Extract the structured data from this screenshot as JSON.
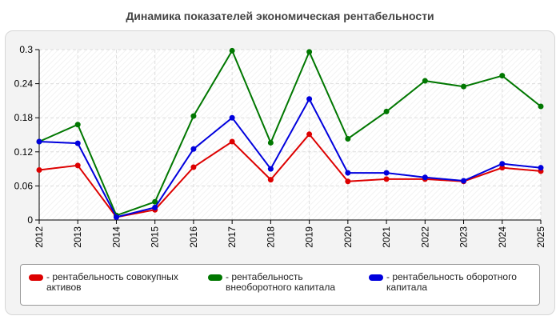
{
  "chart_data": {
    "type": "line",
    "title": "Динамика показателей экономическая рентабельности",
    "categories": [
      "2012",
      "2013",
      "2014",
      "2015",
      "2016",
      "2017",
      "2018",
      "2019",
      "2020",
      "2021",
      "2022",
      "2023",
      "2024",
      "2025"
    ],
    "ylim": [
      0,
      0.3
    ],
    "yticks": [
      "0",
      "0.06",
      "0.12",
      "0.18",
      "0.24",
      "0.3"
    ],
    "grid": true,
    "legend_position": "bottom",
    "series": [
      {
        "name": "- рентабельность совокупных активов",
        "color": "#dd0000",
        "values": [
          0.088,
          0.096,
          0.005,
          0.018,
          0.093,
          0.138,
          0.071,
          0.151,
          0.068,
          0.072,
          0.072,
          0.068,
          0.092,
          0.086
        ]
      },
      {
        "name": "- рентабельность внеоборотного капитала",
        "color": "#007700",
        "values": [
          0.138,
          0.168,
          0.008,
          0.032,
          0.183,
          0.298,
          0.136,
          0.296,
          0.143,
          0.191,
          0.245,
          0.235,
          0.254,
          0.2
        ]
      },
      {
        "name": "- рентабельность оборотного капитала",
        "color": "#0000dd",
        "values": [
          0.138,
          0.135,
          0.005,
          0.022,
          0.125,
          0.18,
          0.09,
          0.213,
          0.083,
          0.083,
          0.075,
          0.069,
          0.099,
          0.092
        ]
      }
    ]
  }
}
